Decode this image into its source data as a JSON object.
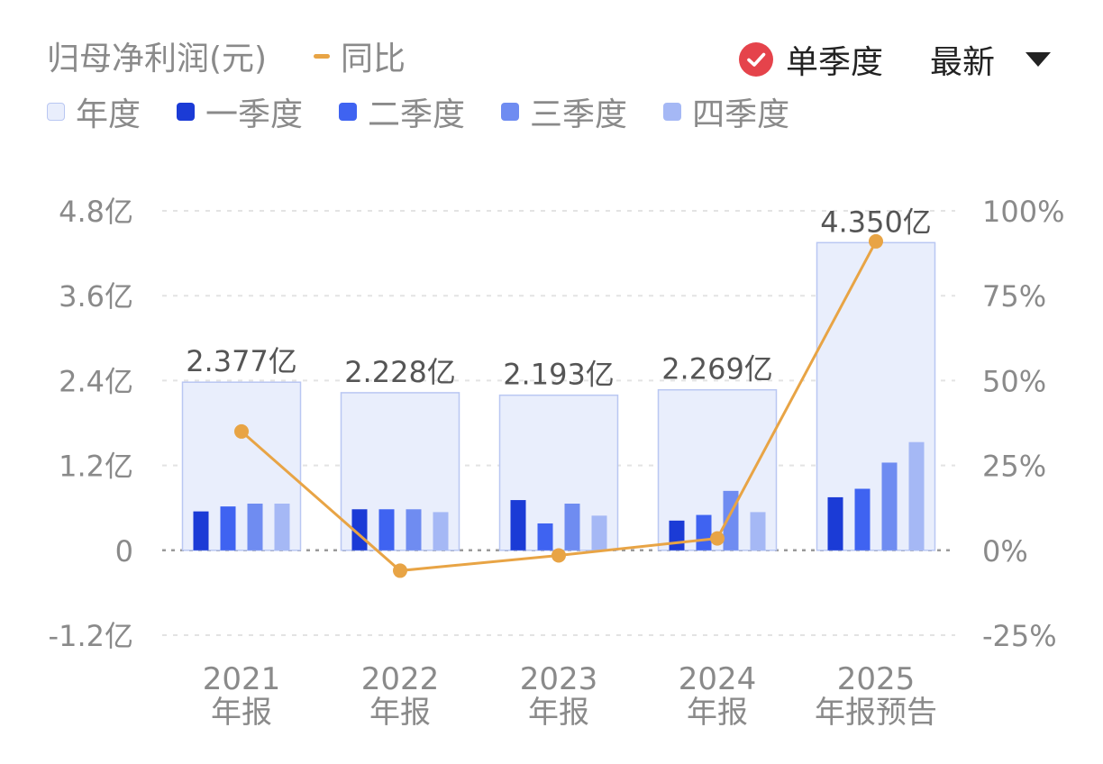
{
  "header": {
    "title": "归母净利润(元)",
    "yoy_label": "同比",
    "single_quarter_label": "单季度",
    "latest_label": "最新"
  },
  "legend": {
    "annual": "年度",
    "q1": "一季度",
    "q2": "二季度",
    "q3": "三季度",
    "q4": "四季度"
  },
  "colors": {
    "annual_fill": "#E9EEFC",
    "annual_stroke": "#B9C7F2",
    "q1": "#1B3BD6",
    "q2": "#3F63F1",
    "q3": "#6F8CF1",
    "q4": "#A5B8F5",
    "yoy": "#E8A445",
    "check": "#E5434B"
  },
  "chart_data": {
    "type": "bar",
    "categories": [
      [
        "2021",
        "年报"
      ],
      [
        "2022",
        "年报"
      ],
      [
        "2023",
        "年报"
      ],
      [
        "2024",
        "年报"
      ],
      [
        "2025",
        "年报预告"
      ]
    ],
    "annual_values": [
      2.377,
      2.228,
      2.193,
      2.269,
      4.35
    ],
    "annual_labels": [
      "2.377亿",
      "2.228亿",
      "2.193亿",
      "2.269亿",
      "4.350亿"
    ],
    "quarterly_series": [
      {
        "name": "一季度",
        "values": [
          0.55,
          0.58,
          0.71,
          0.42,
          0.75
        ]
      },
      {
        "name": "二季度",
        "values": [
          0.62,
          0.58,
          0.38,
          0.5,
          0.87
        ]
      },
      {
        "name": "三季度",
        "values": [
          0.66,
          0.58,
          0.66,
          0.84,
          1.24
        ]
      },
      {
        "name": "四季度",
        "values": [
          0.66,
          0.54,
          0.49,
          0.54,
          1.53
        ]
      }
    ],
    "yoy_series": {
      "name": "同比",
      "values": [
        35,
        -6,
        -1.5,
        3.5,
        91
      ]
    },
    "left_axis": {
      "ticks": [
        4.8,
        3.6,
        2.4,
        1.2,
        0,
        -1.2
      ],
      "tick_labels": [
        "4.8亿",
        "3.6亿",
        "2.4亿",
        "1.2亿",
        "0",
        "-1.2亿"
      ],
      "ylim": [
        -1.2,
        4.8
      ]
    },
    "right_axis": {
      "ticks": [
        100,
        75,
        50,
        25,
        0,
        -25
      ],
      "tick_labels": [
        "100%",
        "75%",
        "50%",
        "25%",
        "0%",
        "-25%"
      ],
      "ylim": [
        -25,
        100
      ]
    },
    "grid": true
  }
}
